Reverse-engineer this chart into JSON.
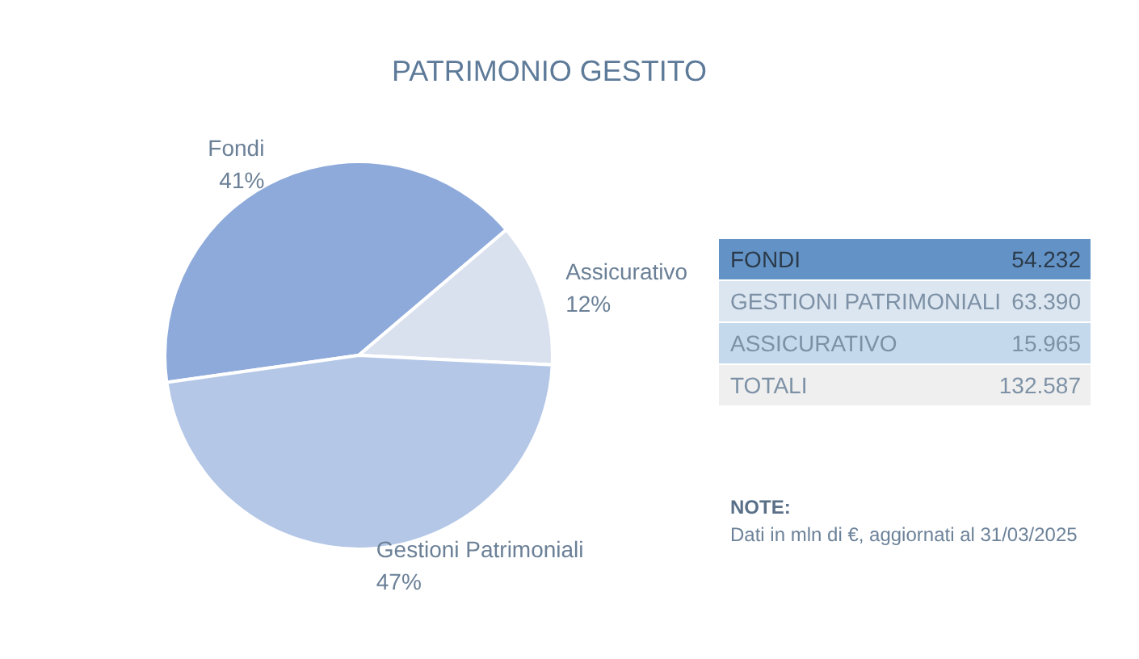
{
  "chart_data": [
    {
      "type": "pie",
      "title": "PATRIMONIO GESTITO",
      "categories": [
        "Fondi",
        "Assicurativo",
        "Gestioni Patrimoniali"
      ],
      "values": [
        41,
        12,
        47
      ],
      "value_labels": [
        "41%",
        "12%",
        "47%"
      ],
      "colors": [
        "#8eaadb",
        "#dae1ee",
        "#b4c7e7"
      ]
    },
    {
      "type": "other",
      "categories": [
        "FONDI",
        "GESTIONI PATRIMONIALI",
        "ASSICURATIVO",
        "TOTALI"
      ],
      "value_labels": [
        "54.232",
        "63.390",
        "15.965",
        "132.587"
      ],
      "colors": [
        "#6393c6",
        "#dce6f1",
        "#c5d9ec",
        "#efefef"
      ],
      "annotations": [
        "NOTE:",
        "Dati in mln di €, aggiornati al 31/03/2025"
      ]
    }
  ]
}
